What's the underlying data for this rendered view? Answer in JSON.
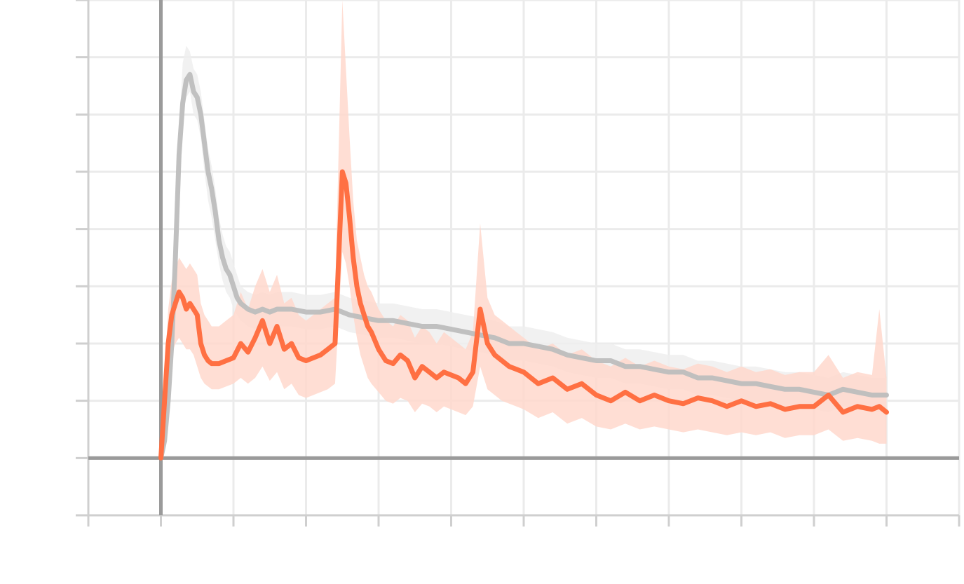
{
  "chart_data": {
    "type": "line",
    "title": "",
    "xlabel": "",
    "ylabel": "",
    "xlim": [
      -1,
      11
    ],
    "ylim": [
      -1,
      8
    ],
    "x_ticks": [
      -1,
      0,
      1,
      2,
      3,
      4,
      5,
      6,
      7,
      8,
      9,
      10,
      11
    ],
    "y_ticks": [
      -1,
      0,
      1,
      2,
      3,
      4,
      5,
      6,
      7,
      8
    ],
    "x_tick_labels": [],
    "y_tick_labels": [],
    "grid": true,
    "legend": "none",
    "series": [
      {
        "color": "#bdbdbd",
        "band_color": "#eeeeee",
        "x": [
          0,
          0.05,
          0.1,
          0.15,
          0.2,
          0.25,
          0.3,
          0.35,
          0.4,
          0.45,
          0.5,
          0.55,
          0.6,
          0.65,
          0.7,
          0.75,
          0.8,
          0.85,
          0.9,
          0.95,
          1.0,
          1.05,
          1.1,
          1.15,
          1.2,
          1.3,
          1.4,
          1.5,
          1.6,
          1.8,
          2.0,
          2.2,
          2.4,
          2.6,
          2.8,
          3.0,
          3.2,
          3.4,
          3.6,
          3.8,
          4.0,
          4.2,
          4.4,
          4.6,
          4.8,
          5.0,
          5.2,
          5.4,
          5.6,
          5.8,
          6.0,
          6.2,
          6.4,
          6.6,
          6.8,
          7.0,
          7.2,
          7.4,
          7.6,
          7.8,
          8.0,
          8.2,
          8.4,
          8.6,
          8.8,
          9.0,
          9.2,
          9.4,
          9.6,
          9.8,
          10.0
        ],
        "values": [
          0.0,
          0.3,
          1.0,
          2.0,
          3.5,
          5.3,
          6.2,
          6.6,
          6.7,
          6.4,
          6.3,
          6.0,
          5.5,
          5.0,
          4.7,
          4.3,
          3.8,
          3.5,
          3.3,
          3.2,
          3.0,
          2.8,
          2.7,
          2.65,
          2.6,
          2.55,
          2.6,
          2.55,
          2.6,
          2.6,
          2.55,
          2.55,
          2.6,
          2.5,
          2.45,
          2.4,
          2.4,
          2.35,
          2.3,
          2.3,
          2.25,
          2.2,
          2.15,
          2.1,
          2.0,
          2.0,
          1.95,
          1.9,
          1.8,
          1.75,
          1.7,
          1.7,
          1.6,
          1.6,
          1.55,
          1.5,
          1.5,
          1.4,
          1.4,
          1.35,
          1.3,
          1.3,
          1.25,
          1.2,
          1.2,
          1.15,
          1.1,
          1.2,
          1.15,
          1.1,
          1.1
        ],
        "lower": [
          0.0,
          0.2,
          0.8,
          1.7,
          3.2,
          5.0,
          5.9,
          6.3,
          6.4,
          6.0,
          5.9,
          5.6,
          5.0,
          4.5,
          4.2,
          3.8,
          3.4,
          3.1,
          2.9,
          2.8,
          2.6,
          2.5,
          2.4,
          2.35,
          2.3,
          2.25,
          2.3,
          2.25,
          2.3,
          2.3,
          2.25,
          2.25,
          2.3,
          2.2,
          2.15,
          2.1,
          2.1,
          2.05,
          2.0,
          2.0,
          1.95,
          1.9,
          1.85,
          1.8,
          1.7,
          1.7,
          1.65,
          1.6,
          1.5,
          1.45,
          1.4,
          1.4,
          1.3,
          1.3,
          1.25,
          1.2,
          1.2,
          1.1,
          1.1,
          1.05,
          1.0,
          1.0,
          0.95,
          0.9,
          0.9,
          0.85,
          0.8,
          0.9,
          0.85,
          0.8,
          0.8
        ],
        "upper": [
          0.0,
          0.4,
          1.2,
          2.3,
          3.8,
          5.7,
          6.9,
          7.2,
          7.1,
          6.8,
          6.7,
          6.4,
          5.9,
          5.4,
          5.1,
          4.7,
          4.2,
          3.9,
          3.7,
          3.6,
          3.4,
          3.2,
          3.0,
          2.95,
          2.9,
          2.85,
          2.9,
          2.85,
          2.9,
          2.9,
          2.85,
          2.85,
          2.9,
          2.8,
          2.75,
          2.7,
          2.7,
          2.65,
          2.6,
          2.6,
          2.55,
          2.5,
          2.45,
          2.4,
          2.3,
          2.3,
          2.25,
          2.2,
          2.1,
          2.05,
          2.0,
          2.0,
          1.9,
          1.9,
          1.85,
          1.8,
          1.8,
          1.7,
          1.7,
          1.65,
          1.6,
          1.6,
          1.55,
          1.5,
          1.5,
          1.45,
          1.4,
          1.5,
          1.45,
          1.4,
          1.4
        ]
      },
      {
        "color": "#ff7043",
        "band_color": "#ffd8cc",
        "x": [
          0,
          0.05,
          0.1,
          0.15,
          0.2,
          0.25,
          0.3,
          0.35,
          0.4,
          0.45,
          0.5,
          0.55,
          0.6,
          0.65,
          0.7,
          0.8,
          0.9,
          1.0,
          1.1,
          1.2,
          1.3,
          1.4,
          1.5,
          1.6,
          1.7,
          1.8,
          1.9,
          2.0,
          2.1,
          2.2,
          2.3,
          2.4,
          2.5,
          2.55,
          2.6,
          2.65,
          2.7,
          2.75,
          2.8,
          2.85,
          2.9,
          3.0,
          3.1,
          3.2,
          3.3,
          3.4,
          3.5,
          3.6,
          3.7,
          3.8,
          3.9,
          4.0,
          4.1,
          4.2,
          4.3,
          4.4,
          4.5,
          4.6,
          4.7,
          4.8,
          4.9,
          5.0,
          5.2,
          5.4,
          5.6,
          5.8,
          6.0,
          6.2,
          6.4,
          6.6,
          6.8,
          7.0,
          7.2,
          7.4,
          7.6,
          7.8,
          8.0,
          8.2,
          8.4,
          8.6,
          8.8,
          9.0,
          9.2,
          9.4,
          9.6,
          9.8,
          9.9,
          10.0
        ],
        "values": [
          0.0,
          1.0,
          2.0,
          2.5,
          2.7,
          2.9,
          2.8,
          2.6,
          2.7,
          2.6,
          2.5,
          2.0,
          1.8,
          1.7,
          1.65,
          1.65,
          1.7,
          1.75,
          2.0,
          1.85,
          2.1,
          2.4,
          2.0,
          2.3,
          1.9,
          2.0,
          1.75,
          1.7,
          1.75,
          1.8,
          1.9,
          2.0,
          5.0,
          4.8,
          4.2,
          3.5,
          3.0,
          2.7,
          2.5,
          2.3,
          2.2,
          1.9,
          1.7,
          1.65,
          1.8,
          1.7,
          1.4,
          1.6,
          1.5,
          1.4,
          1.5,
          1.45,
          1.4,
          1.3,
          1.5,
          2.6,
          2.0,
          1.8,
          1.7,
          1.6,
          1.55,
          1.5,
          1.3,
          1.4,
          1.2,
          1.3,
          1.1,
          1.0,
          1.15,
          1.0,
          1.1,
          1.0,
          0.95,
          1.05,
          1.0,
          0.9,
          1.0,
          0.9,
          0.95,
          0.85,
          0.9,
          0.9,
          1.1,
          0.8,
          0.9,
          0.85,
          0.9,
          0.8
        ],
        "lower": [
          0.0,
          0.5,
          1.2,
          1.8,
          2.0,
          2.1,
          2.0,
          1.9,
          1.9,
          1.8,
          1.6,
          1.4,
          1.3,
          1.25,
          1.2,
          1.2,
          1.25,
          1.3,
          1.4,
          1.3,
          1.4,
          1.6,
          1.35,
          1.5,
          1.2,
          1.3,
          1.1,
          1.05,
          1.1,
          1.15,
          1.2,
          1.3,
          3.6,
          3.4,
          3.0,
          2.5,
          2.1,
          1.8,
          1.6,
          1.4,
          1.3,
          1.15,
          1.0,
          0.95,
          1.05,
          1.0,
          0.8,
          0.95,
          0.9,
          0.8,
          0.9,
          0.85,
          0.8,
          0.75,
          0.9,
          1.6,
          1.2,
          1.1,
          1.0,
          0.95,
          0.9,
          0.85,
          0.7,
          0.8,
          0.6,
          0.7,
          0.55,
          0.5,
          0.6,
          0.5,
          0.55,
          0.5,
          0.45,
          0.5,
          0.45,
          0.4,
          0.45,
          0.4,
          0.45,
          0.35,
          0.4,
          0.4,
          0.5,
          0.3,
          0.35,
          0.3,
          0.25,
          0.25
        ],
        "upper": [
          0.0,
          1.5,
          2.6,
          3.1,
          3.3,
          3.5,
          3.4,
          3.3,
          3.4,
          3.3,
          3.2,
          2.7,
          2.5,
          2.4,
          2.3,
          2.3,
          2.4,
          2.5,
          2.9,
          2.6,
          3.0,
          3.3,
          2.9,
          3.2,
          2.7,
          2.8,
          2.5,
          2.4,
          2.5,
          2.6,
          2.7,
          2.8,
          8.0,
          6.8,
          5.6,
          4.5,
          3.8,
          3.5,
          3.2,
          3.0,
          2.9,
          2.6,
          2.4,
          2.3,
          2.5,
          2.4,
          2.1,
          2.3,
          2.2,
          2.0,
          2.2,
          2.1,
          2.0,
          1.9,
          2.2,
          4.1,
          2.8,
          2.5,
          2.4,
          2.3,
          2.2,
          2.1,
          1.9,
          2.0,
          1.8,
          1.9,
          1.7,
          1.6,
          1.75,
          1.6,
          1.7,
          1.6,
          1.55,
          1.65,
          1.6,
          1.5,
          1.6,
          1.5,
          1.55,
          1.45,
          1.5,
          1.5,
          1.8,
          1.4,
          1.5,
          1.45,
          2.6,
          1.4
        ]
      }
    ]
  }
}
